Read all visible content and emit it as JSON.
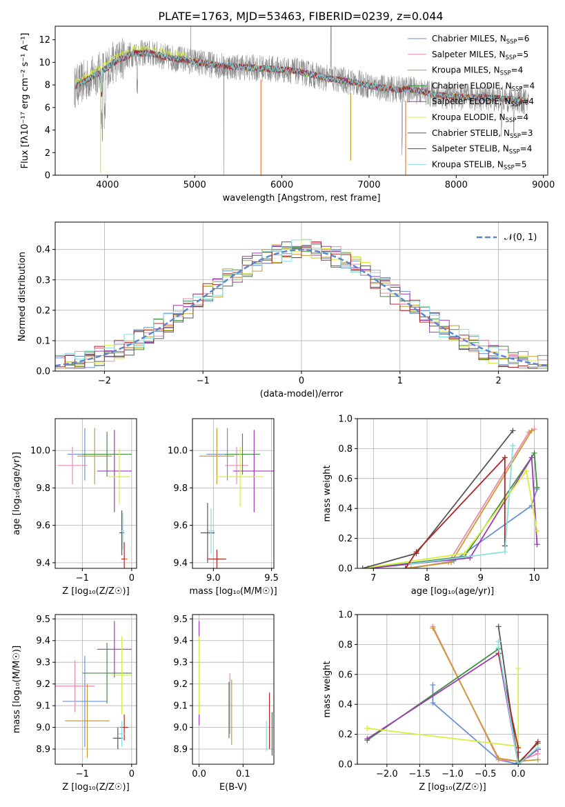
{
  "figure": {
    "title": "PLATE=1763, MJD=53463, FIBERID=0239, z=0.044"
  },
  "colors": {
    "Chabrier MILES": "#6b8fd6",
    "Salpeter MILES": "#e88ab0",
    "Kroupa MILES": "#c99a2e",
    "Chabrier ELODIE": "#3f8f3f",
    "Salpeter ELODIE": "#9b3ab5",
    "Kroupa ELODIE": "#d7ef3a",
    "Chabrier STELIB": "#555555",
    "Salpeter STELIB": "#b22222",
    "Kroupa STELIB": "#86dede",
    "observed": "#8a8a8a",
    "gaussian": "#5b86cc",
    "orange": "#ee7733"
  },
  "chart_data": [
    {
      "panel": "spectrum",
      "type": "line",
      "xlabel": "wavelength [Angstrom, rest frame]",
      "ylabel": "Flux [f$_\\lambda$10$^{-17}$ erg cm$^{-2}$ s$^{-1}$ A$^{-1}$]",
      "ylabel_text": "Flux [fλ10⁻¹⁷ erg cm⁻² s⁻¹ A⁻¹]",
      "xlim": [
        3400,
        9050
      ],
      "ylim": [
        0,
        13.2
      ],
      "xticks": [
        4000,
        5000,
        6000,
        7000,
        8000,
        9000
      ],
      "yticks": [
        0,
        2,
        4,
        6,
        8,
        10,
        12
      ],
      "continuum": {
        "x": [
          3620,
          3800,
          3950,
          4100,
          4300,
          4500,
          4700,
          4900,
          5100,
          5300,
          5500,
          5700,
          5900,
          6100,
          6300,
          6500,
          6700,
          6900,
          7100,
          7300,
          7500,
          7700,
          7900,
          8100,
          8300,
          8500,
          8700,
          8830
        ],
        "y": [
          7.8,
          8.6,
          9.3,
          10.1,
          10.8,
          10.8,
          10.4,
          10.2,
          9.9,
          9.7,
          9.6,
          9.5,
          9.4,
          9.3,
          9.0,
          8.6,
          8.4,
          8.1,
          7.8,
          7.6,
          7.6,
          7.2,
          7.0,
          6.9,
          6.9,
          6.8,
          6.7,
          6.5
        ]
      },
      "legend": [
        {
          "label": "Chabrier MILES, N",
          "nssp": "=6",
          "color_key": "Chabrier MILES"
        },
        {
          "label": "Salpeter MILES, N",
          "nssp": "=5",
          "color_key": "Salpeter MILES"
        },
        {
          "label": "Kroupa MILES, N",
          "nssp": "=4",
          "color_key": "Kroupa MILES"
        },
        {
          "label": "Chabrier ELODIE, N",
          "nssp": "=4",
          "color_key": "Chabrier ELODIE"
        },
        {
          "label": "Salpeter ELODIE, N",
          "nssp": "=4",
          "color_key": "Salpeter ELODIE"
        },
        {
          "label": "Kroupa ELODIE, N",
          "nssp": "=4",
          "color_key": "Kroupa ELODIE"
        },
        {
          "label": "Chabrier STELIB, N",
          "nssp": "=3",
          "color_key": "Chabrier STELIB"
        },
        {
          "label": "Salpeter STELIB, N",
          "nssp": "=4",
          "color_key": "Salpeter STELIB"
        },
        {
          "label": "Kroupa STELIB, N",
          "nssp": "=5",
          "color_key": "Kroupa STELIB"
        }
      ],
      "legend_sub": "SSP",
      "legend_placement": "top-right"
    },
    {
      "panel": "residuals",
      "type": "histogram",
      "xlabel": "(data-model)/error",
      "ylabel": "Normed distribution",
      "xlim": [
        -2.5,
        2.5
      ],
      "ylim": [
        0,
        0.49
      ],
      "xticks": [
        -2,
        -1,
        0,
        1,
        2
      ],
      "yticks": [
        0.0,
        0.1,
        0.2,
        0.3,
        0.4
      ],
      "grid": true,
      "legend": "𝒩(0, 1)",
      "legend_placement": "top-right",
      "gaussian": {
        "mean": 0,
        "sigma": 1
      }
    },
    {
      "panel": "age_vs_Z",
      "type": "errorbar",
      "xlabel": "Z [log₁₀(Z/Z☉)]",
      "ylabel": "age  [log₁₀(age/yr)]",
      "xlim": [
        -1.55,
        0.1
      ],
      "ylim": [
        9.37,
        10.17
      ],
      "xticks": [
        -1,
        0
      ],
      "yticks": [
        9.4,
        9.6,
        9.8,
        10.0
      ],
      "grid": true,
      "points": [
        {
          "s": "Chabrier MILES",
          "x": -0.95,
          "y": 9.98,
          "xerr": 0.35,
          "yerr": 0.14
        },
        {
          "s": "Salpeter MILES",
          "x": -1.2,
          "y": 9.92,
          "xerr": 0.3,
          "yerr": 0.1
        },
        {
          "s": "Kroupa MILES",
          "x": -0.75,
          "y": 9.97,
          "xerr": 0.35,
          "yerr": 0.15
        },
        {
          "s": "Chabrier ELODIE",
          "x": -0.5,
          "y": 9.98,
          "xerr": 0.5,
          "yerr": 0.12
        },
        {
          "s": "Salpeter ELODIE",
          "x": -0.35,
          "y": 9.89,
          "xerr": 0.35,
          "yerr": 0.22
        },
        {
          "s": "Kroupa ELODIE",
          "x": -0.25,
          "y": 9.86,
          "xerr": 0.22,
          "yerr": 0.15
        },
        {
          "s": "Chabrier STELIB",
          "x": -0.2,
          "y": 9.56,
          "xerr": 0.05,
          "yerr": 0.12
        },
        {
          "s": "Salpeter STELIB",
          "x": -0.15,
          "y": 9.42,
          "xerr": 0.06,
          "yerr": 0.09
        },
        {
          "s": "Kroupa STELIB",
          "x": -0.18,
          "y": 9.57,
          "xerr": 0.04,
          "yerr": 0.1
        },
        {
          "s": "Kroupa MILES",
          "x": -0.12,
          "y": 9.42,
          "xerr": 0.02,
          "yerr": 0.0
        }
      ]
    },
    {
      "panel": "age_vs_mass",
      "type": "errorbar",
      "xlabel": "mass [log₁₀(M/M☉)]",
      "ylabel": "",
      "xlim": [
        8.82,
        9.52
      ],
      "ylim": [
        9.37,
        10.17
      ],
      "xticks": [
        9.0,
        9.5
      ],
      "yticks": [
        9.4,
        9.6,
        9.8,
        10.0
      ],
      "grid": true,
      "points": [
        {
          "s": "Chabrier MILES",
          "x": 9.12,
          "y": 9.98,
          "xerr": 0.18,
          "yerr": 0.14
        },
        {
          "s": "Salpeter MILES",
          "x": 9.2,
          "y": 9.92,
          "xerr": 0.1,
          "yerr": 0.1
        },
        {
          "s": "Kroupa MILES",
          "x": 9.03,
          "y": 9.97,
          "xerr": 0.15,
          "yerr": 0.15
        },
        {
          "s": "Chabrier ELODIE",
          "x": 9.25,
          "y": 9.98,
          "xerr": 0.15,
          "yerr": 0.11
        },
        {
          "s": "Salpeter ELODIE",
          "x": 9.35,
          "y": 9.89,
          "xerr": 0.18,
          "yerr": 0.22
        },
        {
          "s": "Kroupa ELODIE",
          "x": 9.23,
          "y": 9.86,
          "xerr": 0.2,
          "yerr": 0.16
        },
        {
          "s": "Chabrier STELIB",
          "x": 8.95,
          "y": 9.56,
          "xerr": 0.06,
          "yerr": 0.16
        },
        {
          "s": "Salpeter STELIB",
          "x": 9.03,
          "y": 9.42,
          "xerr": 0.08,
          "yerr": 0.05
        },
        {
          "s": "Kroupa STELIB",
          "x": 8.98,
          "y": 9.57,
          "xerr": 0.03,
          "yerr": 0.12
        }
      ]
    },
    {
      "panel": "weight_vs_age",
      "type": "line",
      "xlabel": "age  [log₁₀(age/yr)]",
      "ylabel": "mass weight",
      "xlim": [
        6.7,
        10.25
      ],
      "ylim": [
        0,
        1.0
      ],
      "xticks": [
        7,
        8,
        9,
        10
      ],
      "yticks": [
        0.0,
        0.2,
        0.4,
        0.6,
        0.8,
        1.0
      ],
      "grid": true,
      "series": [
        {
          "s": "Chabrier MILES",
          "x": [
            7.7,
            8.5,
            9.95,
            10.05
          ],
          "y": [
            0.0,
            0.05,
            0.42,
            0.53
          ]
        },
        {
          "s": "Salpeter MILES",
          "x": [
            7.6,
            8.4,
            9.9,
            10.0
          ],
          "y": [
            0.0,
            0.04,
            0.91,
            0.93
          ]
        },
        {
          "s": "Kroupa MILES",
          "x": [
            7.6,
            8.45,
            9.95
          ],
          "y": [
            0.0,
            0.04,
            0.92
          ]
        },
        {
          "s": "Chabrier ELODIE",
          "x": [
            6.9,
            8.7,
            10.0,
            10.05
          ],
          "y": [
            0.0,
            0.08,
            0.77,
            0.54
          ]
        },
        {
          "s": "Salpeter ELODIE",
          "x": [
            6.9,
            8.8,
            9.95,
            10.05
          ],
          "y": [
            0.0,
            0.07,
            0.74,
            0.16
          ]
        },
        {
          "s": "Kroupa ELODIE",
          "x": [
            6.8,
            8.7,
            9.85,
            10.05
          ],
          "y": [
            0.0,
            0.1,
            0.65,
            0.25
          ]
        },
        {
          "s": "Chabrier STELIB",
          "x": [
            6.8,
            7.8,
            9.6
          ],
          "y": [
            0.0,
            0.1,
            0.92
          ]
        },
        {
          "s": "Salpeter STELIB",
          "x": [
            7.6,
            7.8,
            9.45,
            9.45
          ],
          "y": [
            0.0,
            0.11,
            0.74,
            0.15
          ]
        },
        {
          "s": "Kroupa STELIB",
          "x": [
            7.7,
            9.45,
            9.6
          ],
          "y": [
            0.03,
            0.11,
            0.82
          ]
        }
      ]
    },
    {
      "panel": "mass_vs_Z",
      "type": "errorbar",
      "xlabel": "Z [log₁₀(Z/Z☉)]",
      "ylabel": "mass [log₁₀(M/M☉)]",
      "xlim": [
        -1.55,
        0.1
      ],
      "ylim": [
        8.83,
        9.52
      ],
      "xticks": [
        -1,
        0
      ],
      "yticks": [
        8.9,
        9.0,
        9.1,
        9.2,
        9.3,
        9.4,
        9.5
      ],
      "grid": true,
      "points": [
        {
          "s": "Chabrier MILES",
          "x": -0.95,
          "y": 9.12,
          "xerr": 0.45,
          "yerr": 0.21
        },
        {
          "s": "Salpeter MILES",
          "x": -1.15,
          "y": 9.19,
          "xerr": 0.4,
          "yerr": 0.12
        },
        {
          "s": "Kroupa MILES",
          "x": -0.9,
          "y": 9.03,
          "xerr": 0.45,
          "yerr": 0.17
        },
        {
          "s": "Chabrier ELODIE",
          "x": -0.5,
          "y": 9.25,
          "xerr": 0.5,
          "yerr": 0.14
        },
        {
          "s": "Salpeter ELODIE",
          "x": -0.35,
          "y": 9.36,
          "xerr": 0.35,
          "yerr": 0.13
        },
        {
          "s": "Kroupa ELODIE",
          "x": -0.2,
          "y": 9.24,
          "xerr": 0.2,
          "yerr": 0.18
        },
        {
          "s": "Chabrier STELIB",
          "x": -0.28,
          "y": 8.95,
          "xerr": 0.1,
          "yerr": 0.05
        },
        {
          "s": "Salpeter STELIB",
          "x": -0.15,
          "y": 9.0,
          "xerr": 0.08,
          "yerr": 0.06
        },
        {
          "s": "Kroupa STELIB",
          "x": -0.2,
          "y": 8.97,
          "xerr": 0.06,
          "yerr": 0.06
        }
      ]
    },
    {
      "panel": "mass_vs_ebv",
      "type": "errorbar",
      "xlabel": "E(B-V)",
      "ylabel": "",
      "xlim": [
        -0.015,
        0.17
      ],
      "ylim": [
        8.83,
        9.52
      ],
      "xticks": [
        0.0,
        0.1
      ],
      "yticks": [
        8.9,
        9.0,
        9.1,
        9.2,
        9.3,
        9.4,
        9.5
      ],
      "grid": true,
      "points": [
        {
          "s": "Salpeter ELODIE",
          "x": 0.0,
          "y": 9.25,
          "xerr": 0,
          "yerr": 0.24
        },
        {
          "s": "Kroupa ELODIE",
          "x": 0.0,
          "y": 9.24,
          "xerr": 0,
          "yerr": 0.18
        },
        {
          "s": "Chabrier ELODIE",
          "x": 0.068,
          "y": 9.08,
          "xerr": 0,
          "yerr": 0.13
        },
        {
          "s": "Salpeter MILES",
          "x": 0.07,
          "y": 9.11,
          "xerr": 0,
          "yerr": 0.14
        },
        {
          "s": "Kroupa MILES",
          "x": 0.074,
          "y": 9.07,
          "xerr": 0,
          "yerr": 0.15
        },
        {
          "s": "Kroupa STELIB",
          "x": 0.153,
          "y": 8.96,
          "xerr": 0,
          "yerr": 0.07
        },
        {
          "s": "Salpeter STELIB",
          "x": 0.16,
          "y": 9.03,
          "xerr": 0,
          "yerr": 0.13
        },
        {
          "s": "Chabrier STELIB",
          "x": 0.166,
          "y": 8.97,
          "xerr": 0,
          "yerr": 0.1
        }
      ]
    },
    {
      "panel": "weight_vs_Z",
      "type": "line",
      "xlabel": "Z [log₁₀(Z/Z☉)]",
      "ylabel": "mass weight",
      "xlim": [
        -2.45,
        0.45
      ],
      "ylim": [
        0,
        1.0
      ],
      "xticks": [
        -2.0,
        -1.5,
        -1.0,
        -0.5,
        0.0
      ],
      "xticklabels": [
        "−2.0",
        "−1.5",
        "−1.0",
        "−0.5",
        "0.0"
      ],
      "yticks": [
        0.0,
        0.2,
        0.4,
        0.6,
        0.8,
        1.0
      ],
      "grid": true,
      "series": [
        {
          "s": "Chabrier MILES",
          "x": [
            -1.3,
            -1.3,
            -0.3,
            0.0,
            0.3
          ],
          "y": [
            0.53,
            0.41,
            0.03,
            0.0,
            0.1
          ]
        },
        {
          "s": "Salpeter MILES",
          "x": [
            -1.3,
            -0.3,
            0.0,
            0.3
          ],
          "y": [
            0.92,
            0.03,
            0.02,
            0.07
          ]
        },
        {
          "s": "Kroupa MILES",
          "x": [
            -1.3,
            -0.3,
            0.0,
            0.3
          ],
          "y": [
            0.91,
            0.04,
            0.02,
            0.03
          ]
        },
        {
          "s": "Chabrier ELODIE",
          "x": [
            -2.3,
            -0.3,
            0.0,
            0.3
          ],
          "y": [
            0.16,
            0.77,
            0.01,
            0.14
          ]
        },
        {
          "s": "Salpeter ELODIE",
          "x": [
            -2.3,
            -0.3,
            0.0,
            0.3
          ],
          "y": [
            0.17,
            0.74,
            0.0,
            0.1
          ]
        },
        {
          "s": "Kroupa ELODIE",
          "x": [
            -2.3,
            0.0,
            0.0,
            0.0
          ],
          "y": [
            0.24,
            0.12,
            0.64,
            0.0
          ]
        },
        {
          "s": "Chabrier STELIB",
          "x": [
            -0.3,
            0.0,
            0.0
          ],
          "y": [
            0.92,
            0.0,
            0.08
          ]
        },
        {
          "s": "Salpeter STELIB",
          "x": [
            -0.3,
            0.0,
            0.0,
            0.3
          ],
          "y": [
            0.74,
            0.11,
            0.0,
            0.15
          ]
        },
        {
          "s": "Kroupa STELIB",
          "x": [
            -0.3,
            -0.3,
            0.0,
            0.3
          ],
          "y": [
            0.82,
            0.78,
            0.0,
            0.11
          ]
        }
      ]
    }
  ]
}
